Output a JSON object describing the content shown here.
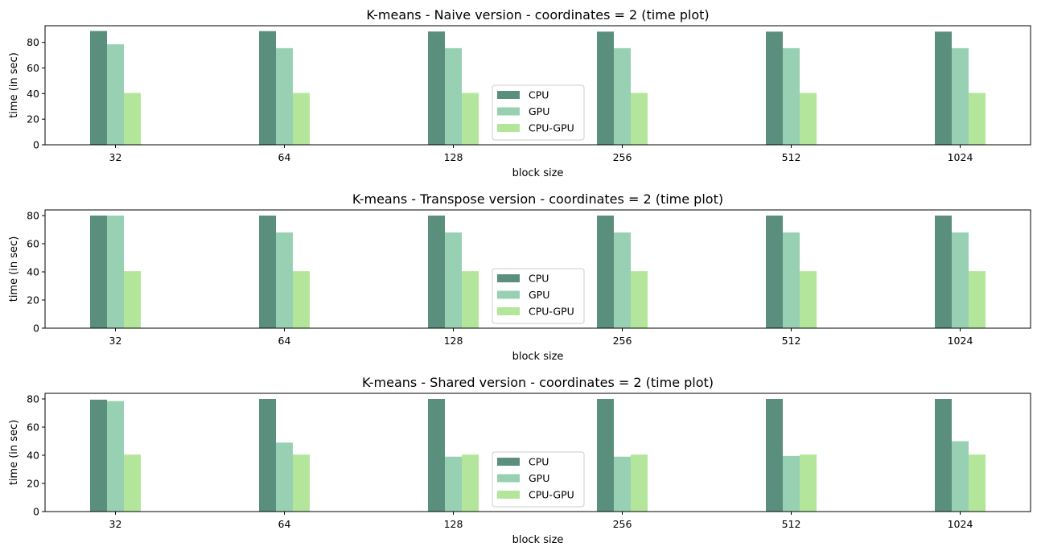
{
  "chart_data": [
    {
      "type": "bar",
      "title": "K-means - Naive version - coordinates = 2 (time plot)",
      "xlabel": "block size",
      "ylabel": "time (in sec)",
      "categories": [
        "32",
        "64",
        "128",
        "256",
        "512",
        "1024"
      ],
      "ylim": [
        0,
        93
      ],
      "yticks": [
        0,
        20,
        40,
        60,
        80
      ],
      "legend_position": "lower center",
      "series": [
        {
          "name": "CPU",
          "color": "#5a8f7e",
          "values": [
            88.9,
            88.8,
            88.5,
            88.4,
            88.4,
            88.4
          ]
        },
        {
          "name": "GPU",
          "color": "#98d0b3",
          "values": [
            78.5,
            75.5,
            75.5,
            75.5,
            75.5,
            75.5
          ]
        },
        {
          "name": "CPU-GPU",
          "color": "#b3e69b",
          "values": [
            40.5,
            40.5,
            40.5,
            40.5,
            40.5,
            40.5
          ]
        }
      ]
    },
    {
      "type": "bar",
      "title": "K-means - Transpose version - coordinates = 2 (time plot)",
      "xlabel": "block size",
      "ylabel": "time (in sec)",
      "categories": [
        "32",
        "64",
        "128",
        "256",
        "512",
        "1024"
      ],
      "ylim": [
        0,
        84
      ],
      "yticks": [
        0,
        20,
        40,
        60,
        80
      ],
      "legend_position": "lower center",
      "series": [
        {
          "name": "CPU",
          "color": "#5a8f7e",
          "values": [
            80.0,
            80.0,
            80.0,
            80.0,
            80.0,
            80.0
          ]
        },
        {
          "name": "GPU",
          "color": "#98d0b3",
          "values": [
            80.0,
            68.0,
            68.0,
            68.0,
            68.0,
            68.0
          ]
        },
        {
          "name": "CPU-GPU",
          "color": "#b3e69b",
          "values": [
            40.5,
            40.5,
            40.5,
            40.5,
            40.5,
            40.5
          ]
        }
      ]
    },
    {
      "type": "bar",
      "title": "K-means - Shared version - coordinates = 2 (time plot)",
      "xlabel": "block size",
      "ylabel": "time (in sec)",
      "categories": [
        "32",
        "64",
        "128",
        "256",
        "512",
        "1024"
      ],
      "ylim": [
        0,
        84
      ],
      "yticks": [
        0,
        20,
        40,
        60,
        80
      ],
      "legend_position": "lower center",
      "series": [
        {
          "name": "CPU",
          "color": "#5a8f7e",
          "values": [
            79.5,
            80.0,
            80.0,
            80.0,
            80.0,
            80.0
          ]
        },
        {
          "name": "GPU",
          "color": "#98d0b3",
          "values": [
            78.5,
            49.0,
            39.0,
            39.0,
            39.5,
            50.0
          ]
        },
        {
          "name": "CPU-GPU",
          "color": "#b3e69b",
          "values": [
            40.5,
            40.5,
            40.5,
            40.5,
            40.5,
            40.5
          ]
        }
      ]
    }
  ]
}
